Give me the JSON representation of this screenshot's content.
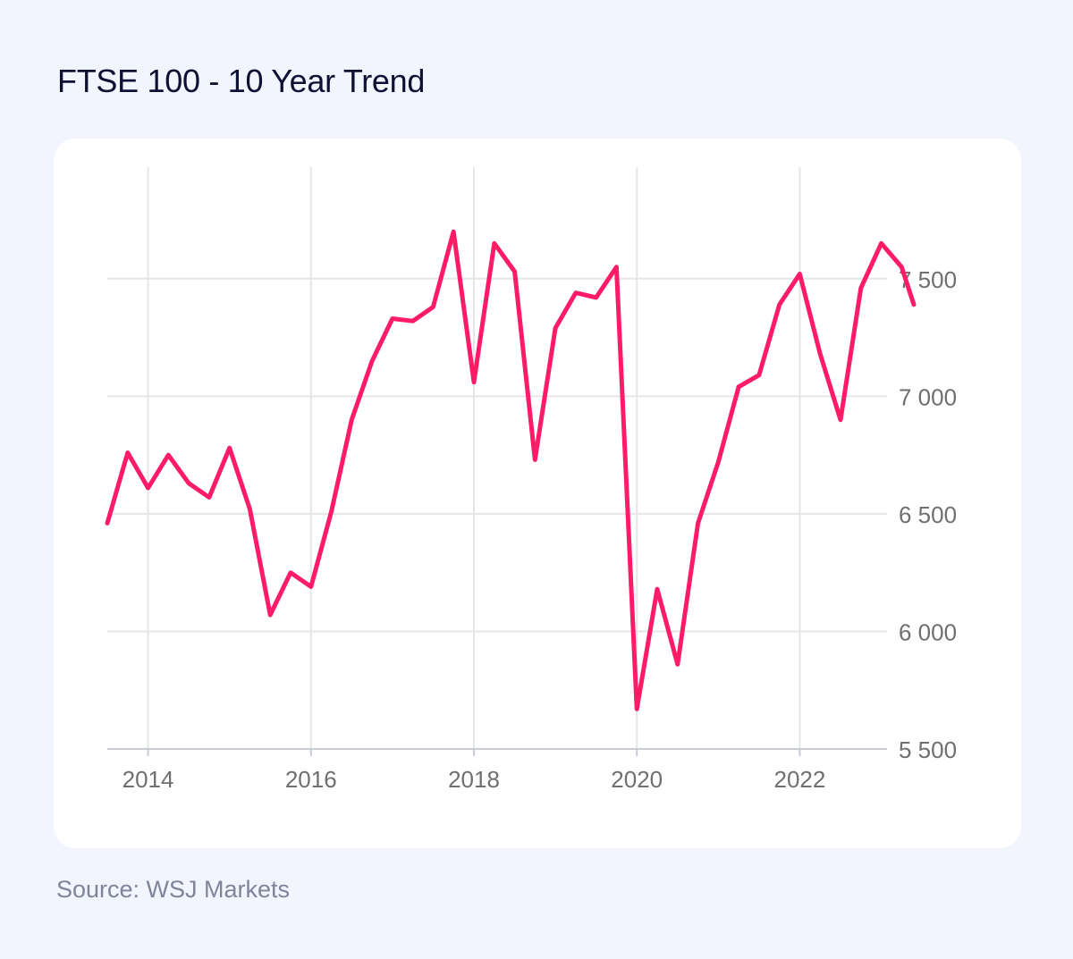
{
  "page": {
    "title": "FTSE 100 - 10 Year Trend",
    "source": "Source: WSJ Markets"
  },
  "colors": {
    "background": "#f2f5fd",
    "line": "#ff1b65",
    "grid": "#e6e6e6",
    "axis": "#c8ccd6"
  },
  "chart_data": {
    "type": "line",
    "title": "FTSE 100 - 10 Year Trend",
    "xlabel": "",
    "ylabel": "",
    "xlim": [
      2013.5,
      2023.4
    ],
    "ylim": [
      5500,
      8020
    ],
    "x_ticks": [
      2014,
      2016,
      2018,
      2020,
      2022
    ],
    "x_tick_labels": [
      "2014",
      "2016",
      "2018",
      "2020",
      "2022"
    ],
    "y_ticks": [
      5500,
      6000,
      6500,
      7000,
      7500
    ],
    "y_tick_labels": [
      "5 500",
      "6 000",
      "6 500",
      "7 000",
      "7 500"
    ],
    "y_axis_side": "right",
    "grid": true,
    "legend": "none",
    "series": [
      {
        "x": [
          2013.5,
          2013.75,
          2014.0,
          2014.25,
          2014.5,
          2014.75,
          2015.0,
          2015.25,
          2015.5,
          2015.75,
          2016.0,
          2016.25,
          2016.5,
          2016.75,
          2017.0,
          2017.25,
          2017.5,
          2017.75,
          2018.0,
          2018.25,
          2018.5,
          2018.75,
          2019.0,
          2019.25,
          2019.5,
          2019.75,
          2020.0,
          2020.25,
          2020.5,
          2020.75,
          2021.0,
          2021.25,
          2021.5,
          2021.75,
          2022.0,
          2022.25,
          2022.5,
          2022.75,
          2023.0,
          2023.25,
          2023.4
        ],
        "y": [
          6460,
          6760,
          6610,
          6750,
          6630,
          6570,
          6780,
          6520,
          6070,
          6250,
          6190,
          6510,
          6900,
          7150,
          7330,
          7320,
          7380,
          7700,
          7060,
          7650,
          7530,
          6730,
          7290,
          7440,
          7420,
          7550,
          5670,
          6180,
          5860,
          6460,
          6720,
          7040,
          7090,
          7390,
          7520,
          7180,
          6900,
          7460,
          7650,
          7550,
          7390
        ]
      }
    ]
  }
}
